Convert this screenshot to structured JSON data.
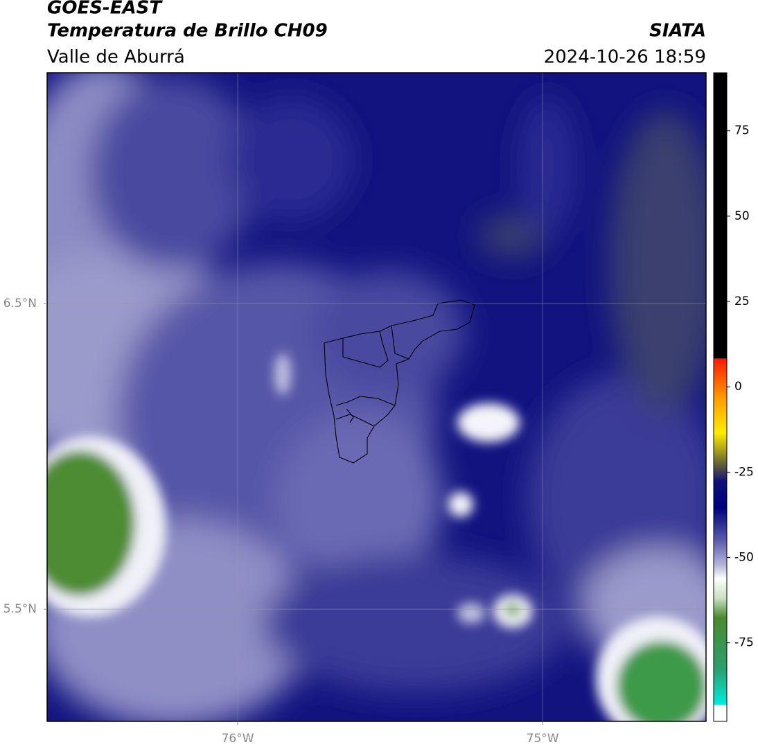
{
  "header": {
    "title": "GOES-EAST",
    "subtitle": "Temperatura de Brillo CH09",
    "region": "Valle de Aburrá",
    "source": "SIATA",
    "datetime": "2024-10-26 18:59"
  },
  "map": {
    "xlim": [
      -76.625,
      -74.464
    ],
    "ylim": [
      5.133,
      7.255
    ],
    "xticks": [
      {
        "value": -76,
        "label": "76°W"
      },
      {
        "value": -75,
        "label": "75°W"
      }
    ],
    "yticks": [
      {
        "value": 6.5,
        "label": "6.5°N"
      },
      {
        "value": 5.5,
        "label": "5.5°N"
      }
    ],
    "grid": true
  },
  "colorbar": {
    "lim": [
      -98,
      92
    ],
    "ticks": [
      75,
      50,
      25,
      0,
      -25,
      -50,
      -75
    ]
  }
}
